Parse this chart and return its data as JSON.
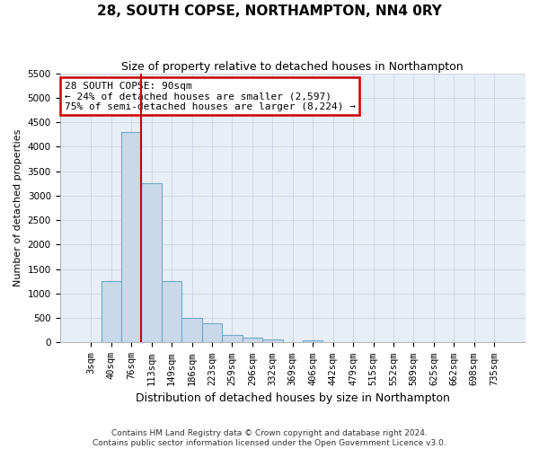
{
  "title": "28, SOUTH COPSE, NORTHAMPTON, NN4 0RY",
  "subtitle": "Size of property relative to detached houses in Northampton",
  "xlabel": "Distribution of detached houses by size in Northampton",
  "ylabel": "Number of detached properties",
  "footer_line1": "Contains HM Land Registry data © Crown copyright and database right 2024.",
  "footer_line2": "Contains public sector information licensed under the Open Government Licence v3.0.",
  "annotation_title": "28 SOUTH COPSE: 90sqm",
  "annotation_line1": "← 24% of detached houses are smaller (2,597)",
  "annotation_line2": "75% of semi-detached houses are larger (8,224) →",
  "bar_color": "#c9d9ea",
  "bar_edge_color": "#6fa8cc",
  "vline_color": "#cc0000",
  "annotation_box_edgecolor": "#cc0000",
  "categories": [
    "3sqm",
    "40sqm",
    "76sqm",
    "113sqm",
    "149sqm",
    "186sqm",
    "223sqm",
    "259sqm",
    "296sqm",
    "332sqm",
    "369sqm",
    "406sqm",
    "442sqm",
    "479sqm",
    "515sqm",
    "552sqm",
    "589sqm",
    "625sqm",
    "662sqm",
    "698sqm",
    "735sqm"
  ],
  "values": [
    0,
    1250,
    4300,
    3250,
    1250,
    500,
    400,
    150,
    100,
    70,
    0,
    50,
    0,
    0,
    0,
    0,
    0,
    0,
    0,
    0,
    0
  ],
  "ylim": [
    0,
    5500
  ],
  "yticks": [
    0,
    500,
    1000,
    1500,
    2000,
    2500,
    3000,
    3500,
    4000,
    4500,
    5000,
    5500
  ],
  "fig_bg": "#ffffff",
  "plot_bg": "#e8eef5",
  "grid_color": "#c5cfe0",
  "title_fontsize": 11,
  "subtitle_fontsize": 9,
  "tick_fontsize": 7.5,
  "ylabel_fontsize": 8,
  "xlabel_fontsize": 9
}
